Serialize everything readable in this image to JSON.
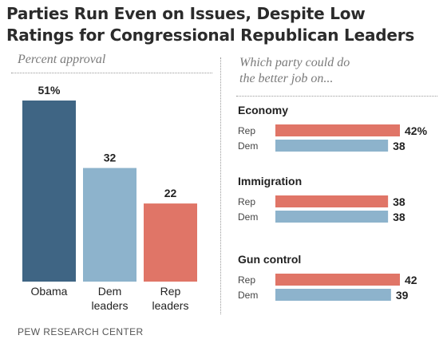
{
  "title_lines": [
    "Parties Run Even on Issues, Despite Low",
    "Ratings for Congressional Republican Leaders"
  ],
  "left_subtitle": "Percent approval",
  "right_subtitle_lines": [
    "Which party could do",
    "the  better job on..."
  ],
  "source": "PEW RESEARCH CENTER",
  "colors": {
    "blue_dark": "#3f6584",
    "blue_light": "#8db3cc",
    "red": "#e07567",
    "text": "#222222"
  },
  "chart_data": [
    {
      "type": "bar",
      "categories": [
        "Obama",
        "Dem leaders",
        "Rep leaders"
      ],
      "category_label_lines": [
        [
          "Obama"
        ],
        [
          "Dem",
          "leaders"
        ],
        [
          "Rep",
          "leaders"
        ]
      ],
      "values": [
        51,
        32,
        22
      ],
      "value_labels": [
        "51%",
        "32",
        "22"
      ],
      "bar_colors": [
        "#3f6584",
        "#8db3cc",
        "#e07567"
      ],
      "ylim": [
        0,
        60
      ]
    },
    {
      "type": "bar",
      "orientation": "horizontal",
      "groups": [
        {
          "label": "Economy",
          "rows": [
            {
              "party": "Rep",
              "value": 42,
              "value_label": "42%"
            },
            {
              "party": "Dem",
              "value": 38,
              "value_label": "38"
            }
          ]
        },
        {
          "label": "Immigration",
          "rows": [
            {
              "party": "Rep",
              "value": 38,
              "value_label": "38"
            },
            {
              "party": "Dem",
              "value": 38,
              "value_label": "38"
            }
          ]
        },
        {
          "label": "Gun control",
          "rows": [
            {
              "party": "Rep",
              "value": 42,
              "value_label": "42"
            },
            {
              "party": "Dem",
              "value": 39,
              "value_label": "39"
            }
          ]
        }
      ],
      "series_colors": {
        "Rep": "#e07567",
        "Dem": "#8db3cc"
      },
      "xlim": [
        0,
        45
      ]
    }
  ]
}
